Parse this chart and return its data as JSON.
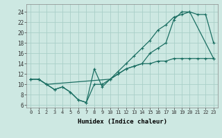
{
  "xlabel": "Humidex (Indice chaleur)",
  "bg_color": "#cde8e2",
  "line_color": "#1a6e62",
  "grid_color": "#aacfc8",
  "xlim": [
    -0.5,
    23.5
  ],
  "ylim": [
    5.5,
    25.5
  ],
  "xticks": [
    0,
    1,
    2,
    3,
    4,
    5,
    6,
    7,
    8,
    9,
    10,
    11,
    12,
    13,
    14,
    15,
    16,
    17,
    18,
    19,
    20,
    21,
    22,
    23
  ],
  "yticks": [
    6,
    8,
    10,
    12,
    14,
    16,
    18,
    20,
    22,
    24
  ],
  "line1_x": [
    0,
    1,
    2,
    10,
    11,
    12,
    13,
    14,
    15,
    16,
    17,
    18,
    19,
    20,
    21,
    22,
    23
  ],
  "line1_y": [
    11,
    11,
    10,
    11,
    12.5,
    14,
    15.5,
    17,
    18.5,
    20.5,
    21.5,
    23,
    23.5,
    24,
    23.5,
    23.5,
    18
  ],
  "line2_x": [
    0,
    1,
    2,
    3,
    4,
    5,
    6,
    7,
    8,
    9,
    10,
    11,
    12,
    13,
    14,
    15,
    16,
    17,
    18,
    19,
    20,
    23
  ],
  "line2_y": [
    11,
    11,
    10,
    9,
    9.5,
    8.5,
    7,
    6.5,
    13,
    9.5,
    11,
    12,
    13,
    13.5,
    14,
    16,
    17,
    18,
    22.5,
    24,
    24,
    15
  ],
  "line3_x": [
    0,
    1,
    2,
    3,
    4,
    5,
    6,
    7,
    8,
    9,
    10,
    11,
    12,
    13,
    14,
    15,
    16,
    17,
    18,
    19,
    20,
    21,
    22,
    23
  ],
  "line3_y": [
    11,
    11,
    10,
    9,
    9.5,
    8.5,
    7,
    6.5,
    10,
    10,
    11,
    12,
    13,
    13.5,
    14,
    14,
    14.5,
    14.5,
    15,
    15,
    15,
    15,
    15,
    15
  ]
}
